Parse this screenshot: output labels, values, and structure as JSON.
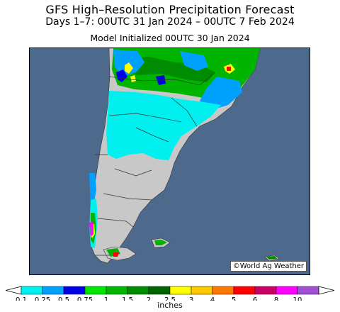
{
  "header": {
    "title": "GFS High–Resolution Precipitation Forecast",
    "days": "Days 1–7: 00UTC 31 Jan 2024 – 00UTC 7 Feb 2024",
    "init": "Model Initialized 00UTC 30 Jan 2024"
  },
  "map": {
    "credit": "©World Ag Weather",
    "colors": {
      "ocean": "#4d6a8c",
      "land": "#c8c8c8",
      "border": "#333333"
    }
  },
  "legend": {
    "unit": "inches",
    "ticks": [
      "0.1",
      "0.25",
      "0.5",
      "0.75",
      "1",
      "1.5",
      "2",
      "2.5",
      "3",
      "4",
      "5",
      "6",
      "8",
      "10"
    ],
    "colors": [
      "#00f0f0",
      "#00a0ff",
      "#0000e6",
      "#00e600",
      "#00b400",
      "#008c00",
      "#006400",
      "#ffff00",
      "#ffc800",
      "#ff7800",
      "#ff0000",
      "#c80064",
      "#ff00ff",
      "#a050d2"
    ]
  }
}
